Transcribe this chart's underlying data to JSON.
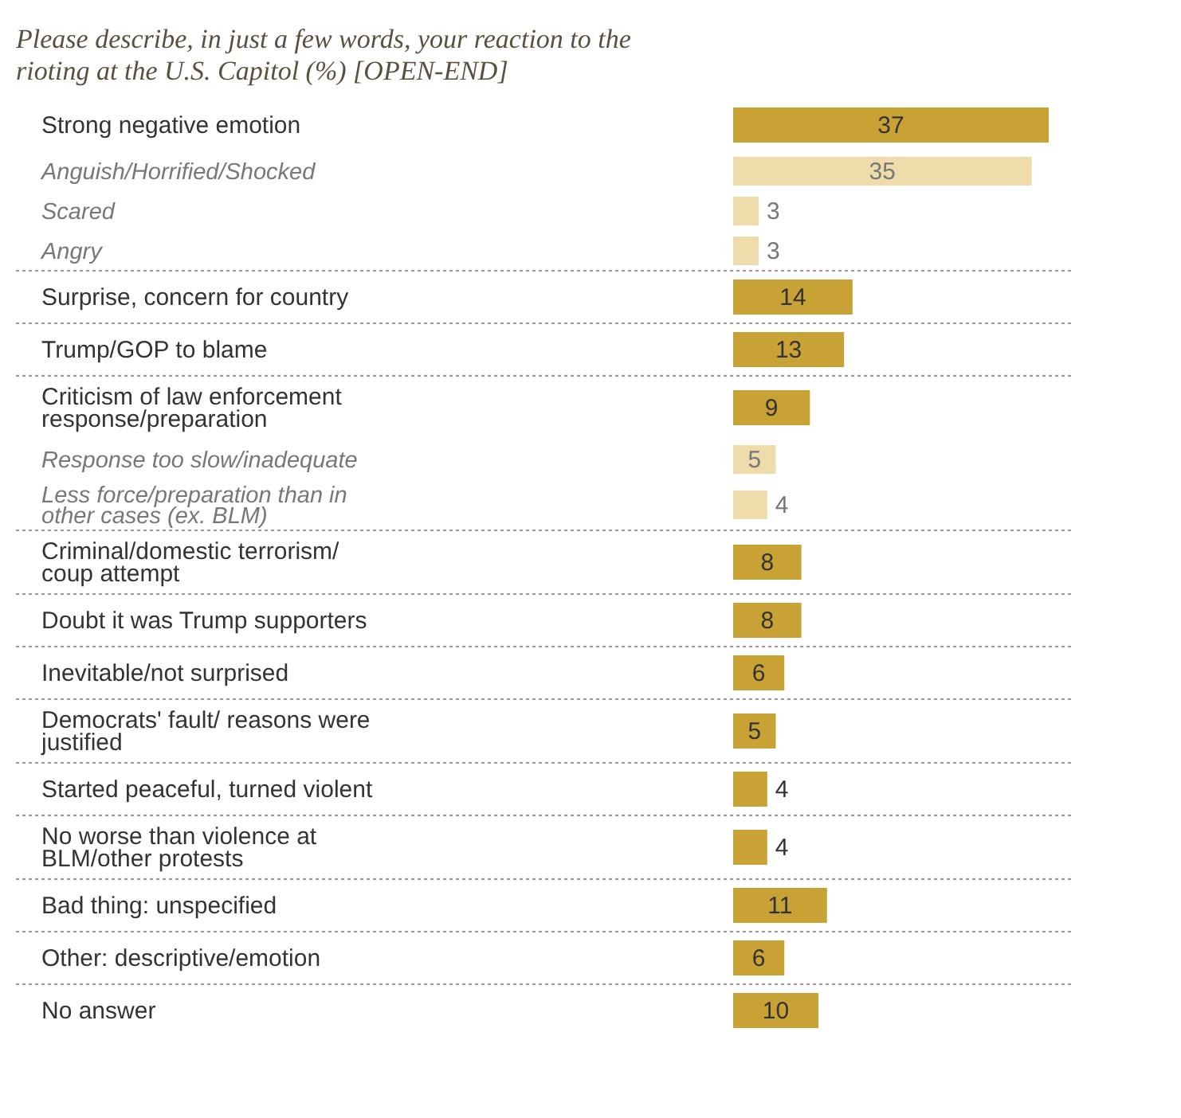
{
  "chart_data": {
    "type": "bar",
    "orientation": "horizontal",
    "title": "Please describe, in just a few words, your reaction to the rioting at the U.S. Capitol (%) [OPEN-END]",
    "categories": [
      "Strong negative emotion",
      "Anguish/Horrified/Shocked",
      "Scared",
      "Angry",
      "Surprise, concern for country",
      "Trump/GOP to blame",
      "Criticism of law enforcement response/preparation",
      "Response too slow/inadequate",
      "Less force/preparation than in other cases (ex. BLM)",
      "Criminal/domestic terrorism/ coup attempt",
      "Doubt it was Trump supporters",
      "Inevitable/not surprised",
      "Democrats' fault/ reasons were justified",
      "Started peaceful, turned violent",
      "No worse than violence at BLM/other protests",
      "Bad thing: unspecified",
      "Other: descriptive/emotion",
      "No answer"
    ],
    "values": [
      37,
      35,
      3,
      3,
      14,
      13,
      9,
      5,
      4,
      8,
      8,
      6,
      5,
      4,
      4,
      11,
      6,
      10
    ],
    "colors": [
      "#c9a235",
      "#efdcab",
      "#efdcab",
      "#efdcab",
      "#c9a235",
      "#c9a235",
      "#c9a235",
      "#efdcab",
      "#efdcab",
      "#c9a235",
      "#c9a235",
      "#c9a235",
      "#c9a235",
      "#c9a235",
      "#c9a235",
      "#c9a235",
      "#c9a235",
      "#c9a235"
    ],
    "data_labels": true
  }
}
